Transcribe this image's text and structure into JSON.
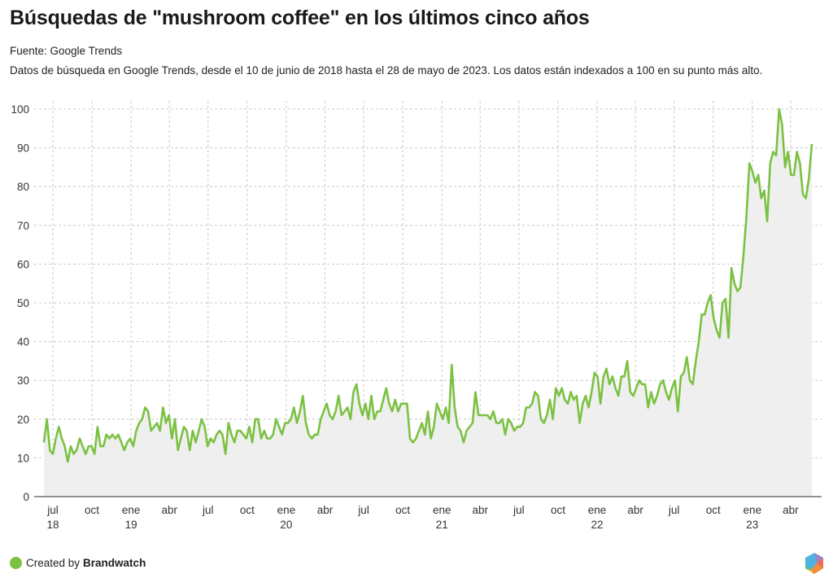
{
  "header": {
    "title": "Búsquedas de \"mushroom coffee\" en los últimos cinco años",
    "source": "Fuente: Google Trends",
    "description": "Datos de búsqueda en Google Trends, desde el 10 de junio de 2018 hasta el 28 de mayo de 2023. Los datos están indexados a 100 en su punto más alto."
  },
  "footer": {
    "created_by": "Created by",
    "brand": "Brandwatch",
    "brand_color": "#7bc142"
  },
  "colors": {
    "line": "#7bc142",
    "area": "#efefef",
    "grid": "#c8c8c8",
    "axis": "#555555"
  },
  "chart_data": {
    "type": "area",
    "title": "Búsquedas de \"mushroom coffee\" en los últimos cinco años",
    "xlabel": "",
    "ylabel": "",
    "ylim": [
      0,
      100
    ],
    "yticks": [
      0,
      10,
      20,
      30,
      40,
      50,
      60,
      70,
      80,
      90,
      100
    ],
    "grid": true,
    "x_start": "2018-06-10",
    "x_end": "2023-05-28",
    "x_interval": "weekly",
    "xtick_labels": [
      {
        "month": "jul",
        "year": "18"
      },
      {
        "month": "oct",
        "year": ""
      },
      {
        "month": "ene",
        "year": "19"
      },
      {
        "month": "abr",
        "year": ""
      },
      {
        "month": "jul",
        "year": ""
      },
      {
        "month": "oct",
        "year": ""
      },
      {
        "month": "ene",
        "year": "20"
      },
      {
        "month": "abr",
        "year": ""
      },
      {
        "month": "jul",
        "year": ""
      },
      {
        "month": "oct",
        "year": ""
      },
      {
        "month": "ene",
        "year": "21"
      },
      {
        "month": "abr",
        "year": ""
      },
      {
        "month": "jul",
        "year": ""
      },
      {
        "month": "oct",
        "year": ""
      },
      {
        "month": "ene",
        "year": "22"
      },
      {
        "month": "abr",
        "year": ""
      },
      {
        "month": "jul",
        "year": ""
      },
      {
        "month": "oct",
        "year": ""
      },
      {
        "month": "ene",
        "year": "23"
      },
      {
        "month": "abr",
        "year": ""
      }
    ],
    "series": [
      {
        "name": "mushroom coffee",
        "values": [
          14,
          20,
          12,
          11,
          15,
          18,
          15,
          13,
          9,
          13,
          11,
          12,
          15,
          13,
          11,
          13,
          13,
          11,
          18,
          13,
          13,
          16,
          15,
          16,
          15,
          16,
          14,
          12,
          14,
          15,
          13,
          17,
          19,
          20,
          23,
          22,
          17,
          18,
          19,
          17,
          23,
          19,
          21,
          15,
          20,
          12,
          15,
          18,
          17,
          12,
          17,
          14,
          17,
          20,
          18,
          13,
          15,
          14,
          16,
          17,
          16,
          11,
          19,
          16,
          14,
          17,
          17,
          16,
          15,
          18,
          14,
          20,
          20,
          15,
          17,
          15,
          15,
          16,
          20,
          18,
          16,
          19,
          19,
          20,
          23,
          19,
          22,
          26,
          19,
          16,
          15,
          16,
          16,
          20,
          22,
          24,
          21,
          20,
          22,
          26,
          21,
          22,
          23,
          20,
          27,
          29,
          24,
          21,
          24,
          20,
          26,
          20,
          22,
          22,
          25,
          28,
          24,
          22,
          25,
          22,
          24,
          24,
          24,
          15,
          14,
          15,
          17,
          19,
          16,
          22,
          15,
          18,
          24,
          22,
          20,
          23,
          19,
          34,
          23,
          18,
          17,
          14,
          17,
          18,
          19,
          27,
          21,
          21,
          21,
          21,
          20,
          22,
          19,
          19,
          20,
          16,
          20,
          19,
          17,
          18,
          18,
          19,
          23,
          23,
          24,
          27,
          26,
          20,
          19,
          21,
          25,
          20,
          28,
          26,
          28,
          25,
          24,
          27,
          25,
          26,
          19,
          24,
          26,
          23,
          27,
          32,
          31,
          24,
          31,
          33,
          29,
          31,
          28,
          26,
          31,
          31,
          35,
          27,
          26,
          28,
          30,
          29,
          29,
          23,
          27,
          24,
          26,
          29,
          30,
          27,
          25,
          28,
          30,
          22,
          31,
          32,
          36,
          30,
          29,
          35,
          40,
          47,
          47,
          50,
          52,
          46,
          43,
          41,
          50,
          51,
          41,
          59,
          55,
          53,
          54,
          62,
          72,
          86,
          84,
          81,
          83,
          77,
          79,
          71,
          86,
          89,
          88,
          100,
          96,
          85,
          89,
          83,
          83,
          89,
          86,
          78,
          77,
          82,
          91
        ]
      }
    ]
  }
}
